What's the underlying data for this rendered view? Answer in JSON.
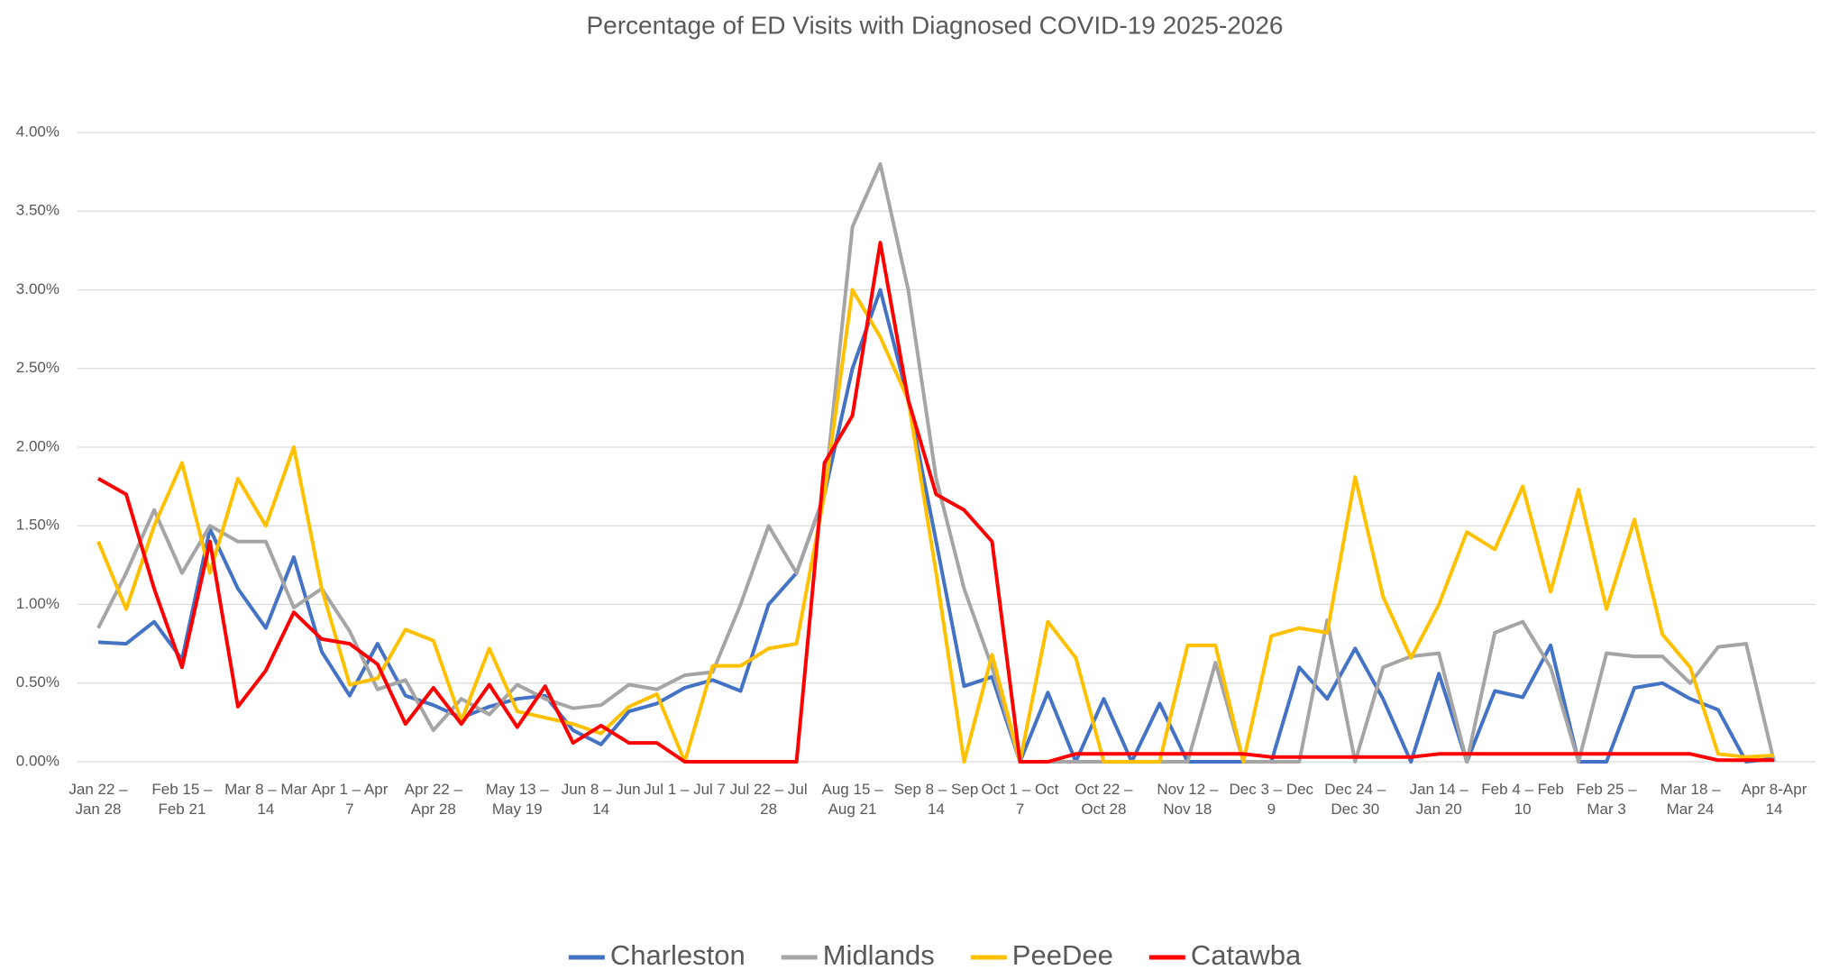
{
  "chart_data": {
    "type": "line",
    "title": "Percentage of ED Visits with Diagnosed COVID-19 2025-2026",
    "categories": [
      "Jan 22 – Jan 28",
      null,
      null,
      "Feb 15 – Feb 21",
      null,
      null,
      "Mar 8 – Mar 14",
      null,
      null,
      "Apr 1 – Apr 7",
      null,
      null,
      "Apr 22 – Apr 28",
      null,
      null,
      "May 13 – May 19",
      null,
      null,
      "Jun 8 – Jun 14",
      null,
      null,
      "Jul 1 – Jul 7",
      null,
      null,
      "Jul 22 – Jul 28",
      null,
      null,
      "Aug 15 – Aug 21",
      null,
      null,
      "Sep 8 – Sep 14",
      null,
      null,
      "Oct 1 – Oct 7",
      null,
      null,
      "Oct 22 – Oct 28",
      null,
      null,
      "Nov 12 – Nov 18",
      null,
      null,
      "Dec 3 – Dec 9",
      null,
      null,
      "Dec 24 – Dec 30",
      null,
      null,
      "Jan 14 – Jan 20",
      null,
      null,
      "Feb 4 – Feb 10",
      null,
      null,
      "Feb 25 – Mar 3",
      null,
      null,
      "Mar 18 – Mar 24",
      null,
      null,
      "Apr 8-Apr 14"
    ],
    "series": [
      {
        "name": "Charleston",
        "color": "#4472c4",
        "values": [
          0.76,
          0.75,
          0.89,
          0.65,
          1.48,
          1.1,
          0.85,
          1.3,
          0.7,
          0.42,
          0.75,
          0.42,
          0.36,
          0.28,
          0.35,
          0.4,
          0.42,
          0.2,
          0.11,
          0.32,
          0.37,
          0.47,
          0.52,
          0.45,
          1.0,
          1.2,
          1.7,
          2.5,
          3.0,
          2.3,
          1.4,
          0.48,
          0.54,
          0.0,
          0.44,
          0.0,
          0.4,
          0.0,
          0.37,
          0.0,
          0.0,
          0.0,
          0.0,
          0.6,
          0.4,
          0.72,
          0.4,
          0.0,
          0.56,
          0.0,
          0.45,
          0.41,
          0.74,
          0.0,
          0.0,
          0.47,
          0.5,
          0.4,
          0.33,
          0.0,
          0.02
        ]
      },
      {
        "name": "Midlands",
        "color": "#a5a5a5",
        "values": [
          0.85,
          1.2,
          1.6,
          1.2,
          1.5,
          1.4,
          1.4,
          0.98,
          1.1,
          0.83,
          0.46,
          0.52,
          0.2,
          0.4,
          0.3,
          0.49,
          0.4,
          0.34,
          0.36,
          0.49,
          0.46,
          0.55,
          0.57,
          1.0,
          1.5,
          1.2,
          1.7,
          3.4,
          3.8,
          3.0,
          1.8,
          1.1,
          0.6,
          0.0,
          0.0,
          0.0,
          0.0,
          0.0,
          0.0,
          0.0,
          0.63,
          0.0,
          0.0,
          0.0,
          0.9,
          0.0,
          0.6,
          0.67,
          0.69,
          0.0,
          0.82,
          0.89,
          0.6,
          0.0,
          0.69,
          0.67,
          0.67,
          0.5,
          0.73,
          0.75,
          0.0
        ]
      },
      {
        "name": "PeeDee",
        "color": "#ffc000",
        "values": [
          1.4,
          0.97,
          1.5,
          1.9,
          1.2,
          1.8,
          1.5,
          2.0,
          1.1,
          0.49,
          0.53,
          0.84,
          0.77,
          0.26,
          0.72,
          0.32,
          0.28,
          0.24,
          0.18,
          0.35,
          0.43,
          0.0,
          0.61,
          0.61,
          0.72,
          0.75,
          1.7,
          3.0,
          2.7,
          2.3,
          1.2,
          0.0,
          0.68,
          0.0,
          0.89,
          0.66,
          0.0,
          0.0,
          0.0,
          0.74,
          0.74,
          0.0,
          0.8,
          0.85,
          0.82,
          1.81,
          1.05,
          0.66,
          1.0,
          1.46,
          1.35,
          1.75,
          1.08,
          1.73,
          0.97,
          1.54,
          0.81,
          0.6,
          0.05,
          0.03,
          0.04
        ]
      },
      {
        "name": "Catawba",
        "color": "#ff0000",
        "values": [
          1.8,
          1.7,
          1.1,
          0.6,
          1.4,
          0.35,
          0.58,
          0.95,
          0.78,
          0.75,
          0.62,
          0.24,
          0.47,
          0.24,
          0.49,
          0.22,
          0.48,
          0.12,
          0.23,
          0.12,
          0.12,
          0.0,
          0.0,
          0.0,
          0.0,
          0.0,
          1.9,
          2.2,
          3.3,
          2.3,
          1.7,
          1.6,
          1.4,
          0.0,
          0.0,
          0.05,
          0.05,
          0.05,
          0.05,
          0.05,
          0.05,
          0.05,
          0.03,
          0.03,
          0.03,
          0.03,
          0.03,
          0.03,
          0.05,
          0.05,
          0.05,
          0.05,
          0.05,
          0.05,
          0.05,
          0.05,
          0.05,
          0.05,
          0.01,
          0.01,
          0.01
        ]
      }
    ],
    "ylim": [
      0,
      4
    ],
    "yticks": [
      {
        "value": 0,
        "label": "0.00%"
      },
      {
        "value": 0.5,
        "label": "0.50%"
      },
      {
        "value": 1,
        "label": "1.00%"
      },
      {
        "value": 1.5,
        "label": "1.50%"
      },
      {
        "value": 2,
        "label": "2.00%"
      },
      {
        "value": 2.5,
        "label": "2.50%"
      },
      {
        "value": 3,
        "label": "3.00%"
      },
      {
        "value": 3.5,
        "label": "3.50%"
      },
      {
        "value": 4,
        "label": "4.00%"
      }
    ],
    "grid": true,
    "legend": "bottom"
  }
}
